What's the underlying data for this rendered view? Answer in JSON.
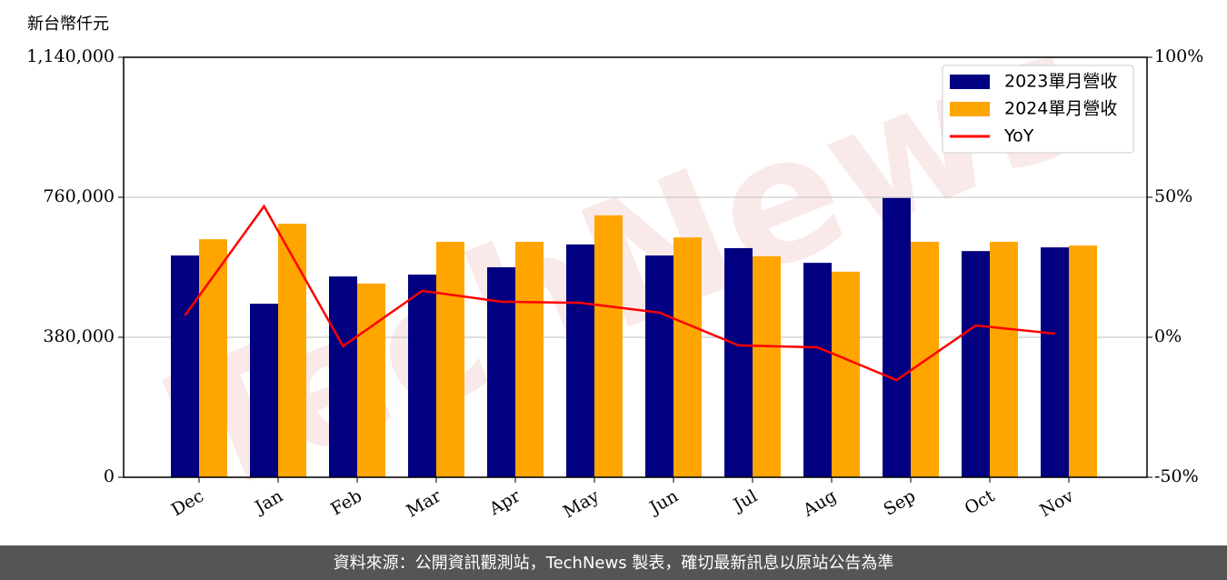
{
  "chart_data": {
    "type": "bar",
    "y_label": "新台幣仟元",
    "watermark": "TechNews",
    "footer": "資料來源：公開資訊觀測站，TechNews 製表，確切最新訊息以原站公告為準",
    "categories": [
      "Dec",
      "Jan",
      "Feb",
      "Mar",
      "Apr",
      "May",
      "Jun",
      "Jul",
      "Aug",
      "Sep",
      "Oct",
      "Nov"
    ],
    "series": [
      {
        "name": "2023單月營收",
        "type": "bar",
        "color": "#000080",
        "values": [
          602000,
          471000,
          545000,
          550000,
          570000,
          632000,
          602000,
          622000,
          582000,
          758000,
          614000,
          624000
        ]
      },
      {
        "name": "2024單月營收",
        "type": "bar",
        "color": "#ffa500",
        "values": [
          646000,
          688000,
          526000,
          639000,
          639000,
          711000,
          651000,
          600000,
          558000,
          639000,
          639000,
          629000
        ]
      },
      {
        "name": "YoY",
        "type": "line",
        "axis": "y2",
        "color": "#ff0000",
        "values": [
          7.8,
          46.8,
          -3.2,
          16.6,
          12.7,
          12.3,
          8.8,
          -2.9,
          -3.6,
          -15.3,
          4.2,
          1.3
        ]
      }
    ],
    "ylim": [
      0,
      1140000
    ],
    "yticks": [
      0,
      {
        "value": 380000,
        "label": "380,000"
      },
      {
        "value": 760000,
        "label": "760,000"
      },
      {
        "value": 1140000,
        "label": "1,140,000"
      }
    ],
    "y2lim": [
      -50,
      100
    ],
    "y2ticks": [
      {
        "value": -50,
        "label": "-50%"
      },
      {
        "value": 0,
        "label": "0%"
      },
      {
        "value": 50,
        "label": "50%"
      },
      {
        "value": 100,
        "label": "100%"
      }
    ],
    "grid": true,
    "legend": "upper right"
  }
}
